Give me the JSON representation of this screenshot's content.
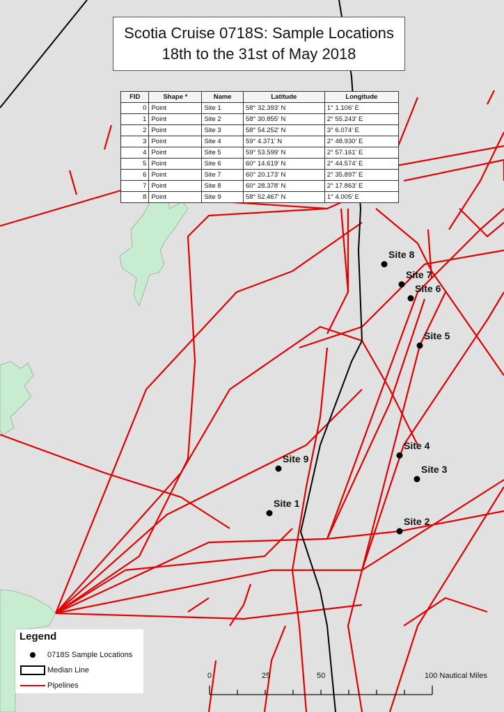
{
  "title": {
    "line1": "Scotia Cruise 0718S: Sample Locations",
    "line2": "18th to the 31st of May 2018"
  },
  "table": {
    "columns": [
      "FID",
      "Shape *",
      "Name",
      "Latitude",
      "Longitude"
    ],
    "rows": [
      [
        "0",
        "Point",
        "Site 1",
        "58° 32.393' N",
        "1° 1.106' E"
      ],
      [
        "1",
        "Point",
        "Site 2",
        "58° 30.855' N",
        "2° 55.243' E"
      ],
      [
        "2",
        "Point",
        "Site 3",
        "58° 54.252' N",
        "3° 6.074' E"
      ],
      [
        "3",
        "Point",
        "Site 4",
        "59° 4.371' N",
        "2° 48.930' E"
      ],
      [
        "4",
        "Point",
        "Site 5",
        "59° 53.599' N",
        "2° 57.161' E"
      ],
      [
        "5",
        "Point",
        "Site 6",
        "60° 14.619' N",
        "2° 44.574' E"
      ],
      [
        "6",
        "Point",
        "Site 7",
        "60° 20.173' N",
        "2° 35.897' E"
      ],
      [
        "7",
        "Point",
        "Site 8",
        "60° 28.378' N",
        "2° 17.863' E"
      ],
      [
        "8",
        "Point",
        "Site 9",
        "58° 52.467' N",
        "1° 4.005' E"
      ]
    ]
  },
  "sites": [
    "Site 1",
    "Site 2",
    "Site 3",
    "Site 4",
    "Site 5",
    "Site 6",
    "Site 7",
    "Site 8",
    "Site 9"
  ],
  "legend": {
    "title": "Legend",
    "items": [
      "0718S Sample Locations",
      "Median Line",
      "Pipelines"
    ]
  },
  "scale_bar": {
    "labels": [
      "0",
      "25",
      "50",
      "100 Nautical Miles"
    ]
  },
  "colors": {
    "sea": "#e1e1e1",
    "land": "#c8ecd0",
    "pipelines": "#e00000",
    "median_line": "#000000",
    "sample_points": "#000000"
  }
}
